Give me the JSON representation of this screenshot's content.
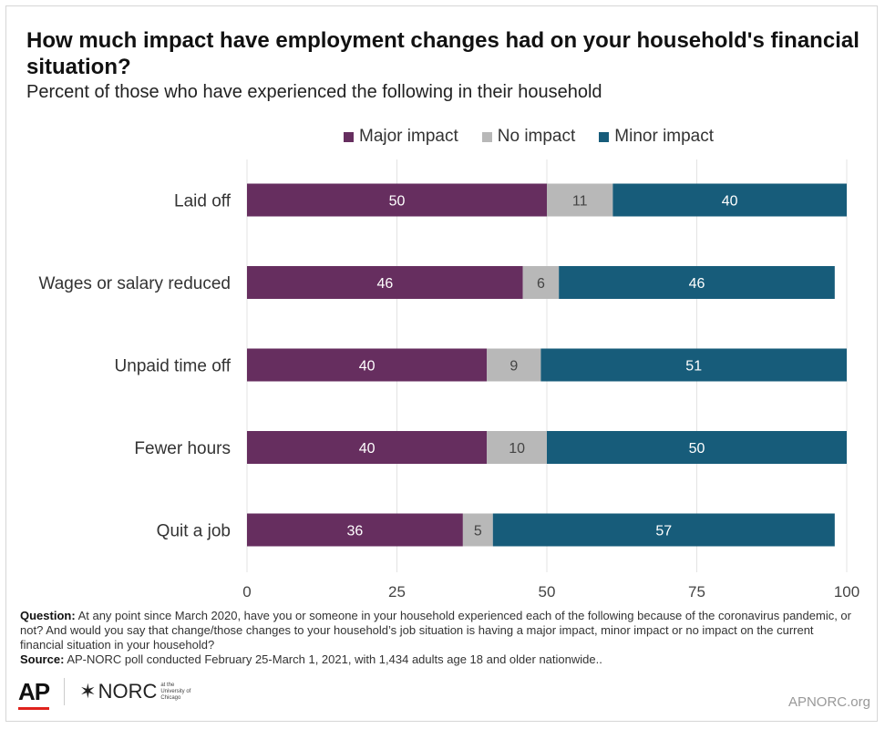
{
  "title": "How much impact have employment changes had on your household's financial situation?",
  "subtitle": "Percent of those who have experienced the following in their household",
  "colors": {
    "major": "#662e5f",
    "none": "#b8b8b8",
    "minor": "#175c7a",
    "grid": "#e3e3e3",
    "label_on_dark": "#ffffff",
    "label_on_light": "#444444"
  },
  "legend": [
    {
      "label": "Major impact",
      "color": "#662e5f"
    },
    {
      "label": "No impact",
      "color": "#b8b8b8"
    },
    {
      "label": "Minor impact",
      "color": "#175c7a"
    }
  ],
  "chart_data": {
    "type": "bar",
    "orientation": "horizontal",
    "stacked": true,
    "categories": [
      "Laid off",
      "Wages or salary reduced",
      "Unpaid time off",
      "Fewer hours",
      "Quit a job"
    ],
    "series": [
      {
        "name": "Major impact",
        "values": [
          50,
          46,
          40,
          40,
          36
        ]
      },
      {
        "name": "No impact",
        "values": [
          11,
          6,
          9,
          10,
          5
        ]
      },
      {
        "name": "Minor impact",
        "values": [
          40,
          46,
          51,
          50,
          57
        ]
      }
    ],
    "xlim": [
      0,
      100
    ],
    "xticks": [
      0,
      25,
      50,
      75,
      100
    ],
    "grid": true,
    "legend_position": "top"
  },
  "notes": {
    "question_label": "Question:",
    "question_text": "At any point since March 2020, have you or someone in your household experienced each of the following because of the coronavirus pandemic, or not? And would you say that change/those changes to your household’s job situation is having a major impact, minor impact or no impact on the current financial situation in your household?",
    "source_label": "Source:",
    "source_text": "AP-NORC poll conducted February 25-March 1, 2021, with 1,434 adults age 18 and older nationwide.."
  },
  "footer": {
    "ap_logo": "AP",
    "norc_logo": "NORC",
    "norc_star": "✶",
    "norc_small": "at the University of Chicago",
    "url": "APNORC.org"
  }
}
